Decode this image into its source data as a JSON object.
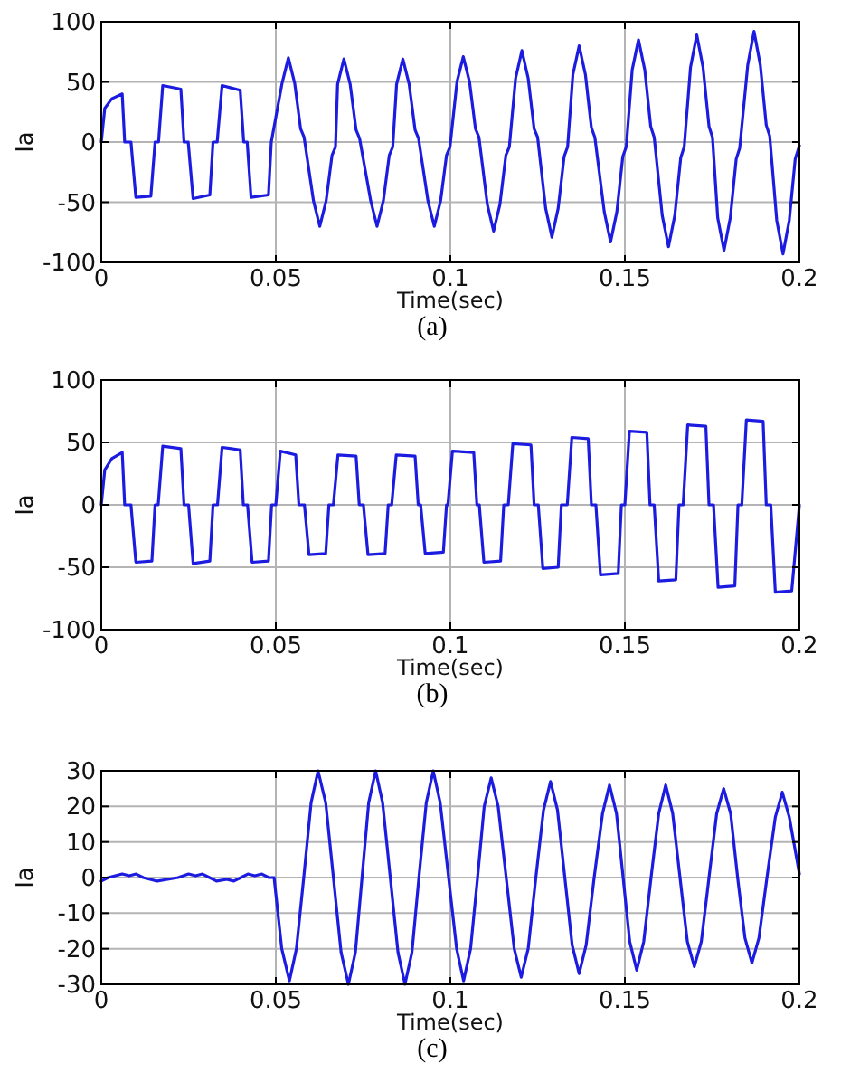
{
  "chart_data": [
    {
      "type": "line",
      "xlabel": "Time(sec)",
      "ylabel": "Ia",
      "annotations": [
        "(a)"
      ],
      "color": "#1c1ce0",
      "grid": true,
      "xlim": [
        0,
        0.2
      ],
      "xticks": [
        0,
        0.05,
        0.1,
        0.15,
        0.2
      ],
      "ylim": [
        -100,
        100
      ],
      "yticks": [
        -100,
        -50,
        0,
        50,
        100
      ],
      "x": [
        0,
        0.001,
        0.003,
        0.006,
        0.0067,
        0.0085,
        0.0099,
        0.0142,
        0.0154,
        0.0164,
        0.0176,
        0.0228,
        0.0237,
        0.0249,
        0.0263,
        0.0311,
        0.032,
        0.0332,
        0.0346,
        0.0398,
        0.0408,
        0.0418,
        0.0429,
        0.0479,
        0.0487,
        0.0518,
        0.0536,
        0.0554,
        0.0571,
        0.0581,
        0.0608,
        0.0626,
        0.0644,
        0.0661,
        0.0671,
        0.0677,
        0.0695,
        0.0713,
        0.073,
        0.074,
        0.0772,
        0.079,
        0.0808,
        0.0825,
        0.0835,
        0.0846,
        0.0864,
        0.0882,
        0.0899,
        0.0909,
        0.0936,
        0.0954,
        0.0972,
        0.0989,
        0.0999,
        0.1019,
        0.1037,
        0.1055,
        0.1072,
        0.1082,
        0.1106,
        0.1124,
        0.1142,
        0.1159,
        0.1169,
        0.1187,
        0.1205,
        0.1223,
        0.124,
        0.125,
        0.1273,
        0.1291,
        0.1309,
        0.1326,
        0.1336,
        0.1351,
        0.1369,
        0.1387,
        0.1404,
        0.1414,
        0.1441,
        0.1459,
        0.1477,
        0.1494,
        0.1504,
        0.1521,
        0.1539,
        0.1557,
        0.1574,
        0.1584,
        0.1607,
        0.1625,
        0.1643,
        0.166,
        0.167,
        0.1688,
        0.1706,
        0.1724,
        0.1741,
        0.1751,
        0.1766,
        0.1784,
        0.1802,
        0.1819,
        0.1829,
        0.1852,
        0.187,
        0.1888,
        0.1905,
        0.1915,
        0.1935,
        0.1953,
        0.1971,
        0.1988,
        0.2
      ],
      "values": [
        0,
        28,
        36,
        40,
        0,
        0,
        -46,
        -45,
        0,
        0,
        47,
        44,
        0,
        0,
        -47,
        -44,
        0,
        0,
        47,
        43,
        0,
        0,
        -46,
        -44,
        0,
        49,
        70,
        49,
        11,
        4,
        -49,
        -70,
        -49,
        -11,
        -4,
        48,
        69,
        48,
        10,
        3,
        -49,
        -70,
        -49,
        -11,
        -4,
        48,
        69,
        48,
        10,
        3,
        -49,
        -70,
        -49,
        -11,
        -4,
        50,
        71,
        50,
        11,
        4,
        -52,
        -74,
        -52,
        -11,
        -4,
        53,
        76,
        53,
        11,
        4,
        -55,
        -79,
        -55,
        -12,
        -4,
        56,
        80,
        56,
        12,
        4,
        -58,
        -83,
        -58,
        -12,
        -4,
        60,
        85,
        60,
        13,
        4,
        -61,
        -87,
        -61,
        -13,
        -4,
        62,
        89,
        62,
        13,
        4,
        -63,
        -90,
        -63,
        -14,
        -5,
        64,
        92,
        64,
        14,
        5,
        -65,
        -93,
        -65,
        -14,
        -3
      ]
    },
    {
      "type": "line",
      "xlabel": "Time(sec)",
      "ylabel": "Ia",
      "annotations": [
        "(b)"
      ],
      "color": "#1c1ce0",
      "grid": true,
      "xlim": [
        0,
        0.2
      ],
      "xticks": [
        0,
        0.05,
        0.1,
        0.15,
        0.2
      ],
      "ylim": [
        -100,
        100
      ],
      "yticks": [
        -100,
        -50,
        0,
        50,
        100
      ],
      "x": [
        0,
        0.001,
        0.003,
        0.006,
        0.0067,
        0.0085,
        0.0099,
        0.0145,
        0.0154,
        0.0163,
        0.0176,
        0.0228,
        0.0237,
        0.025,
        0.0263,
        0.0311,
        0.032,
        0.0333,
        0.0346,
        0.0398,
        0.0407,
        0.0419,
        0.0432,
        0.0479,
        0.0488,
        0.05,
        0.0513,
        0.0557,
        0.0566,
        0.0582,
        0.0595,
        0.0643,
        0.0652,
        0.0665,
        0.0678,
        0.073,
        0.0739,
        0.0751,
        0.0764,
        0.0813,
        0.0822,
        0.0832,
        0.0845,
        0.0899,
        0.0908,
        0.0915,
        0.0928,
        0.098,
        0.0989,
        0.0993,
        0.1006,
        0.1067,
        0.1076,
        0.1083,
        0.1096,
        0.1144,
        0.1153,
        0.1166,
        0.1179,
        0.1231,
        0.124,
        0.1252,
        0.1265,
        0.1309,
        0.1318,
        0.1335,
        0.1348,
        0.1395,
        0.1404,
        0.1417,
        0.143,
        0.1481,
        0.149,
        0.15,
        0.1513,
        0.1563,
        0.1572,
        0.1584,
        0.1597,
        0.1646,
        0.1655,
        0.1667,
        0.168,
        0.1732,
        0.1741,
        0.1754,
        0.1767,
        0.1815,
        0.1824,
        0.1835,
        0.1848,
        0.1896,
        0.1905,
        0.1918,
        0.1931,
        0.1978,
        0.2
      ],
      "values": [
        0,
        28,
        37,
        42,
        0,
        0,
        -46,
        -45,
        0,
        0,
        47,
        45,
        0,
        0,
        -47,
        -45,
        0,
        0,
        46,
        44,
        0,
        0,
        -46,
        -45,
        0,
        0,
        43,
        40,
        0,
        0,
        -40,
        -39,
        0,
        0,
        40,
        39,
        0,
        0,
        -40,
        -39,
        0,
        0,
        40,
        39,
        0,
        0,
        -39,
        -38,
        0,
        0,
        43,
        42,
        0,
        0,
        -46,
        -45,
        0,
        0,
        49,
        48,
        0,
        0,
        -51,
        -50,
        0,
        0,
        54,
        53,
        0,
        0,
        -56,
        -55,
        0,
        0,
        59,
        58,
        0,
        0,
        -61,
        -60,
        0,
        0,
        64,
        63,
        0,
        0,
        -66,
        -65,
        0,
        0,
        68,
        67,
        0,
        0,
        -70,
        -69,
        0
      ]
    },
    {
      "type": "line",
      "xlabel": "Time(sec)",
      "ylabel": "Ia",
      "annotations": [
        "(c)"
      ],
      "color": "#1c1ce0",
      "grid": true,
      "xlim": [
        0,
        0.2
      ],
      "xticks": [
        0,
        0.05,
        0.1,
        0.15,
        0.2
      ],
      "ylim": [
        -30,
        30
      ],
      "yticks": [
        -30,
        -20,
        -10,
        0,
        10,
        20,
        30
      ],
      "x": [
        0,
        0.002,
        0.006,
        0.008,
        0.01,
        0.012,
        0.016,
        0.019,
        0.022,
        0.025,
        0.027,
        0.029,
        0.031,
        0.033,
        0.036,
        0.038,
        0.04,
        0.042,
        0.044,
        0.046,
        0.048,
        0.0495,
        0.0517,
        0.0539,
        0.0559,
        0.058,
        0.0601,
        0.0621,
        0.0643,
        0.0665,
        0.0687,
        0.0708,
        0.0728,
        0.0747,
        0.0766,
        0.0786,
        0.0806,
        0.0828,
        0.085,
        0.087,
        0.089,
        0.091,
        0.0931,
        0.0951,
        0.0971,
        0.0995,
        0.1018,
        0.1038,
        0.1058,
        0.1078,
        0.1097,
        0.1117,
        0.1137,
        0.116,
        0.1183,
        0.1203,
        0.1223,
        0.1245,
        0.1267,
        0.1287,
        0.1307,
        0.1328,
        0.1349,
        0.1369,
        0.1389,
        0.1412,
        0.1436,
        0.1456,
        0.1476,
        0.1495,
        0.1514,
        0.1534,
        0.1554,
        0.1575,
        0.1597,
        0.1617,
        0.1637,
        0.1658,
        0.1679,
        0.1699,
        0.1719,
        0.1741,
        0.1763,
        0.1783,
        0.1803,
        0.1823,
        0.1844,
        0.1864,
        0.1884,
        0.1907,
        0.1931,
        0.1951,
        0.1971,
        0.2
      ],
      "values": [
        -1,
        0,
        1,
        0.5,
        1,
        0,
        -1,
        -0.5,
        0,
        1,
        0.5,
        1,
        0,
        -1,
        -0.5,
        -1,
        0,
        1,
        0.5,
        1,
        0,
        0,
        -20,
        -29,
        -20,
        0,
        21,
        30,
        21,
        0,
        -21,
        -30,
        -21,
        0,
        21,
        30,
        21,
        0,
        -21,
        -30,
        -21,
        0,
        21,
        30,
        21,
        0,
        -20,
        -29,
        -20,
        0,
        20,
        28,
        20,
        0,
        -20,
        -28,
        -20,
        0,
        19,
        27,
        19,
        0,
        -19,
        -27,
        -19,
        0,
        18,
        26,
        18,
        0,
        -18,
        -26,
        -18,
        0,
        18,
        26,
        18,
        0,
        -18,
        -25,
        -18,
        0,
        18,
        25,
        18,
        0,
        -17,
        -24,
        -17,
        0,
        17,
        24,
        17,
        1
      ]
    }
  ]
}
